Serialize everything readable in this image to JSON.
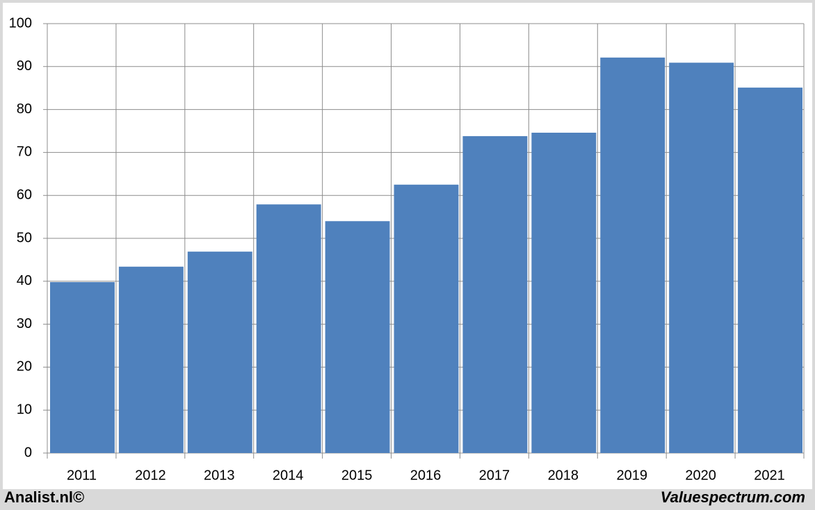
{
  "chart_data": {
    "type": "bar",
    "categories": [
      "2011",
      "2012",
      "2013",
      "2014",
      "2015",
      "2016",
      "2017",
      "2018",
      "2019",
      "2020",
      "2021"
    ],
    "values": [
      39.8,
      43.4,
      46.9,
      57.9,
      54.0,
      62.5,
      73.8,
      74.6,
      92.1,
      90.9,
      85.1
    ],
    "color": "#4f81bd",
    "ylim": [
      0,
      100
    ],
    "yticks": [
      0,
      10,
      20,
      30,
      40,
      50,
      60,
      70,
      80,
      90,
      100
    ],
    "grid": true,
    "footer_left": "Analist.nl©",
    "footer_right": "Valuespectrum.com"
  }
}
